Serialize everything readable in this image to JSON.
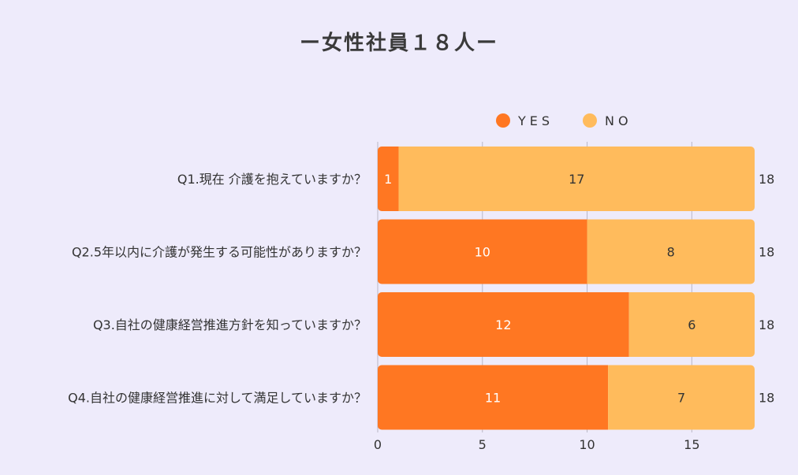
{
  "chart_data": {
    "type": "bar",
    "orientation": "horizontal",
    "stacked": true,
    "title": "ー女性社員１８人ー",
    "categories": [
      "Q1.現在 介護を抱えていますか？",
      "Q2.5年以内に介護が発生する可能性がありますか？",
      "Q3.自社の健康経営推進方針を知っていますか？",
      "Q4.自社の健康経営推進に対して満足していますか？"
    ],
    "series": [
      {
        "name": "YES",
        "color": "#ff7722",
        "values": [
          1,
          10,
          12,
          11
        ]
      },
      {
        "name": "NO",
        "color": "#ffbb5c",
        "values": [
          17,
          8,
          6,
          7
        ]
      }
    ],
    "totals": [
      "18",
      "18",
      "18",
      "18"
    ],
    "xlim": [
      0,
      18
    ],
    "xticks": [
      0,
      5,
      10,
      15
    ],
    "grid": true,
    "legend_position": "top"
  }
}
